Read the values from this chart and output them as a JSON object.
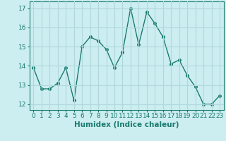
{
  "x": [
    0,
    1,
    2,
    3,
    4,
    5,
    6,
    7,
    8,
    9,
    10,
    11,
    12,
    13,
    14,
    15,
    16,
    17,
    18,
    19,
    20,
    21,
    22,
    23
  ],
  "y": [
    13.9,
    12.8,
    12.8,
    13.1,
    13.9,
    12.2,
    15.0,
    15.5,
    15.3,
    14.85,
    13.9,
    14.7,
    17.0,
    15.1,
    16.8,
    16.2,
    15.5,
    14.1,
    14.3,
    13.5,
    12.9,
    12.0,
    12.0,
    12.45
  ],
  "line_color": "#1a7a6e",
  "marker": "o",
  "markersize": 2.5,
  "linewidth": 1.0,
  "xlabel": "Humidex (Indice chaleur)",
  "xlabel_fontsize": 7.5,
  "ylabel_ticks": [
    12,
    13,
    14,
    15,
    16,
    17
  ],
  "xtick_labels": [
    "0",
    "1",
    "2",
    "3",
    "4",
    "5",
    "6",
    "7",
    "8",
    "9",
    "10",
    "11",
    "12",
    "13",
    "14",
    "15",
    "16",
    "17",
    "18",
    "19",
    "20",
    "21",
    "22",
    "23"
  ],
  "ylim": [
    11.7,
    17.35
  ],
  "xlim": [
    -0.5,
    23.5
  ],
  "bg_color": "#cceef0",
  "grid_color": "#b0d8dc",
  "tick_fontsize": 6.5
}
